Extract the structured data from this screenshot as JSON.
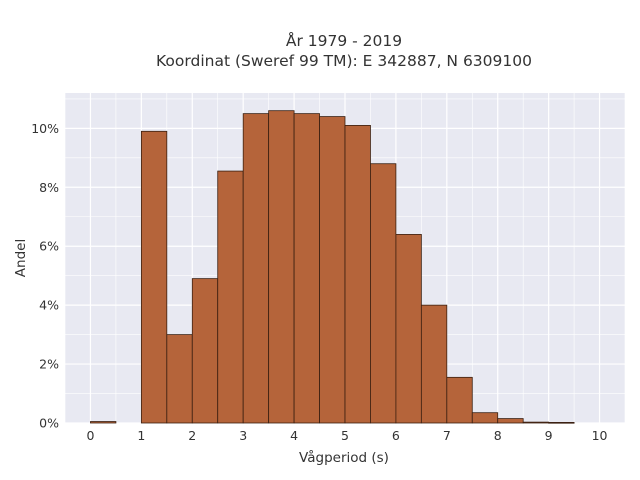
{
  "chart_data": {
    "type": "bar",
    "title_line1": "År 1979 - 2019",
    "title_line2": "Koordinat (Sweref 99 TM): E 342887, N 6309100",
    "xlabel": "Vågperiod (s)",
    "ylabel": "Andel",
    "xlim": [
      -0.5,
      10.5
    ],
    "ylim": [
      0,
      11.2
    ],
    "x_ticks": [
      0,
      1,
      2,
      3,
      4,
      5,
      6,
      7,
      8,
      9,
      10
    ],
    "y_ticks": [
      0,
      2,
      4,
      6,
      8,
      10
    ],
    "y_tick_suffix": "%",
    "bin_width": 0.5,
    "bins": [
      {
        "x0": 0.0,
        "value": 0.05
      },
      {
        "x0": 0.5,
        "value": 0.0
      },
      {
        "x0": 1.0,
        "value": 9.9
      },
      {
        "x0": 1.5,
        "value": 3.0
      },
      {
        "x0": 2.0,
        "value": 4.9
      },
      {
        "x0": 2.5,
        "value": 8.55
      },
      {
        "x0": 3.0,
        "value": 10.5
      },
      {
        "x0": 3.5,
        "value": 10.6
      },
      {
        "x0": 4.0,
        "value": 10.5
      },
      {
        "x0": 4.5,
        "value": 10.4
      },
      {
        "x0": 5.0,
        "value": 10.1
      },
      {
        "x0": 5.5,
        "value": 8.8
      },
      {
        "x0": 6.0,
        "value": 6.4
      },
      {
        "x0": 6.5,
        "value": 4.0
      },
      {
        "x0": 7.0,
        "value": 1.55
      },
      {
        "x0": 7.5,
        "value": 0.35
      },
      {
        "x0": 8.0,
        "value": 0.15
      },
      {
        "x0": 8.5,
        "value": 0.03
      },
      {
        "x0": 9.0,
        "value": 0.02
      }
    ],
    "bar_color": "#b5643a",
    "bar_edge_color": "#3a1f10",
    "plot_bg": "#e8e9f2",
    "grid": true,
    "grid_color": "#ffffff",
    "legend": false
  }
}
